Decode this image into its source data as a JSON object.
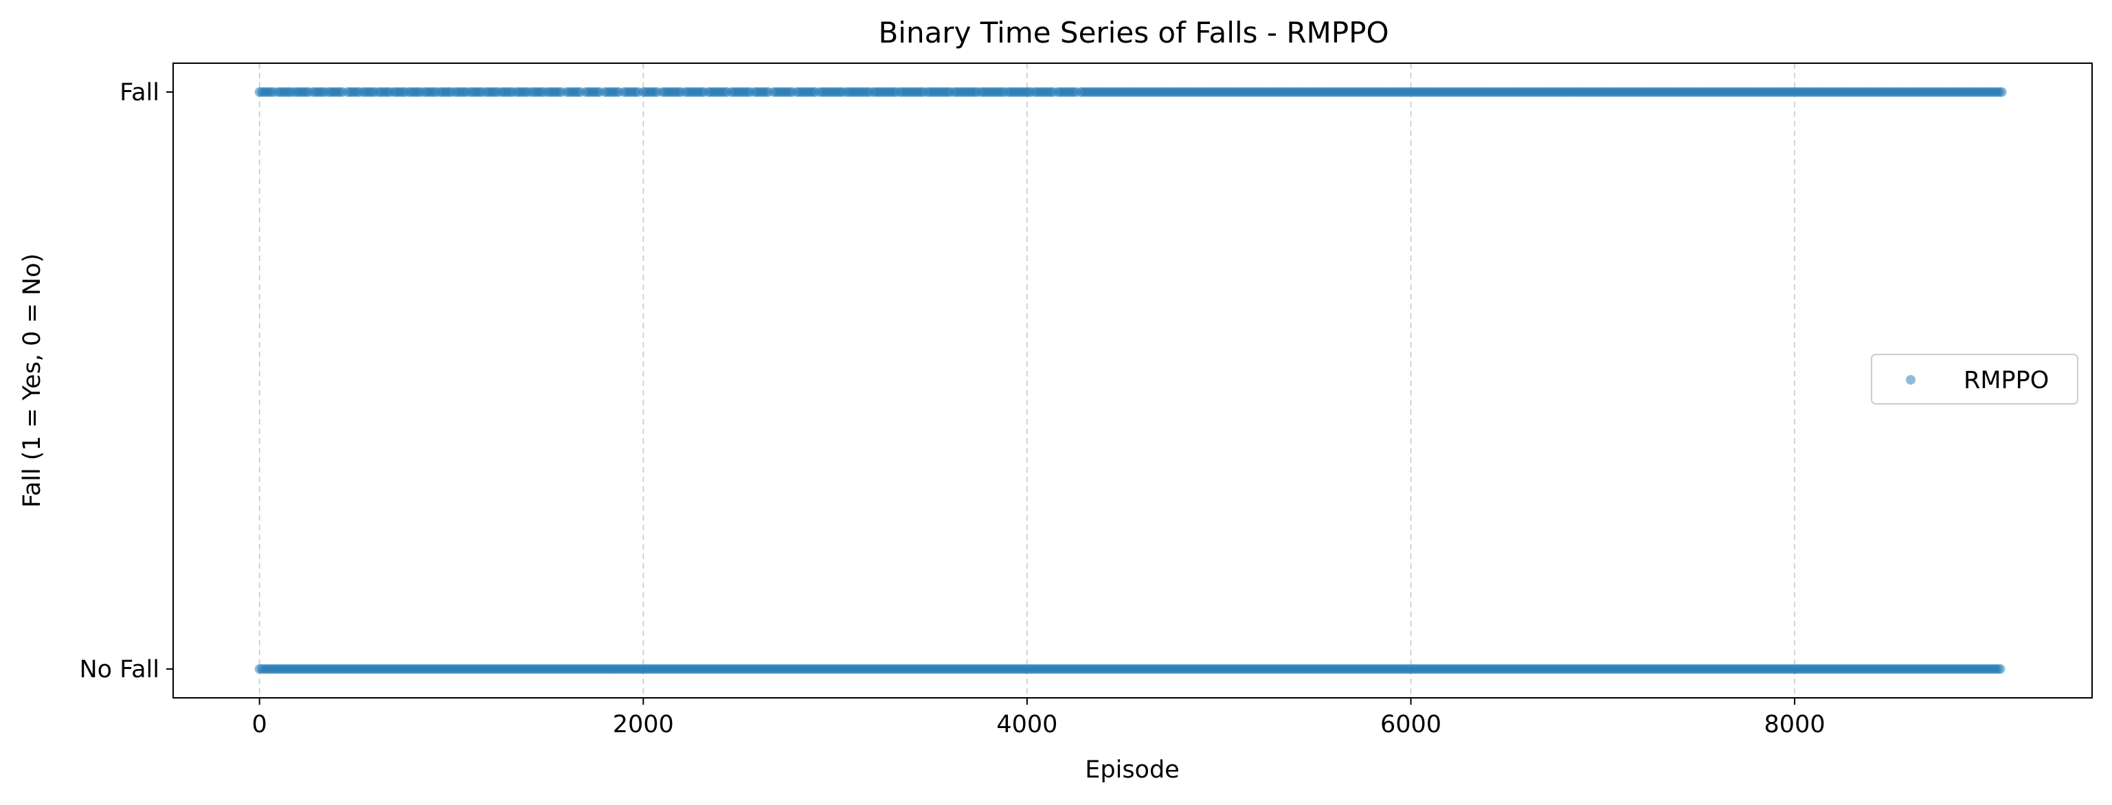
{
  "chart_data": {
    "type": "scatter",
    "title": "Binary Time Series of Falls - RMPPO",
    "xlabel": "Episode",
    "ylabel": "Fall (1 = Yes, 0 = No)",
    "xlim": [
      -450,
      9550
    ],
    "ylim": [
      -0.05,
      1.05
    ],
    "x_ticks": [
      0,
      2000,
      4000,
      6000,
      8000
    ],
    "x_tick_labels": [
      "0",
      "2000",
      "4000",
      "6000",
      "8000"
    ],
    "y_ticks": [
      0,
      1
    ],
    "y_tick_labels": [
      "No Fall",
      "Fall"
    ],
    "grid": "vertical dashed at x ticks",
    "legend_position": "center-right",
    "series": [
      {
        "name": "RMPPO",
        "color": "#1f77b4",
        "alpha": 0.5,
        "marker": "circle",
        "episodes_range": [
          0,
          9080
        ],
        "fall_1_segments": [
          [
            0,
            80
          ],
          [
            95,
            170
          ],
          [
            185,
            260
          ],
          [
            280,
            340
          ],
          [
            360,
            440
          ],
          [
            460,
            520
          ],
          [
            540,
            600
          ],
          [
            620,
            680
          ],
          [
            700,
            760
          ],
          [
            780,
            840
          ],
          [
            860,
            920
          ],
          [
            940,
            1000
          ],
          [
            1020,
            1080
          ],
          [
            1100,
            1160
          ],
          [
            1180,
            1240
          ],
          [
            1260,
            1320
          ],
          [
            1340,
            1400
          ],
          [
            1420,
            1480
          ],
          [
            1500,
            1580
          ],
          [
            1600,
            1680
          ],
          [
            1700,
            1780
          ],
          [
            1800,
            1880
          ],
          [
            1900,
            1980
          ],
          [
            2000,
            2080
          ],
          [
            2100,
            2200
          ],
          [
            2220,
            2320
          ],
          [
            2340,
            2440
          ],
          [
            2460,
            2560
          ],
          [
            2580,
            2660
          ],
          [
            2680,
            2780
          ],
          [
            2800,
            2900
          ],
          [
            2920,
            3040
          ],
          [
            3060,
            3180
          ],
          [
            3200,
            3320
          ],
          [
            3340,
            3460
          ],
          [
            3480,
            3600
          ],
          [
            3620,
            3740
          ],
          [
            3760,
            3880
          ],
          [
            3900,
            4020
          ],
          [
            4040,
            4140
          ],
          [
            4160,
            4260
          ],
          [
            4280,
            9080
          ]
        ],
        "fall_0_segments": [
          [
            0,
            9080
          ]
        ]
      }
    ]
  }
}
